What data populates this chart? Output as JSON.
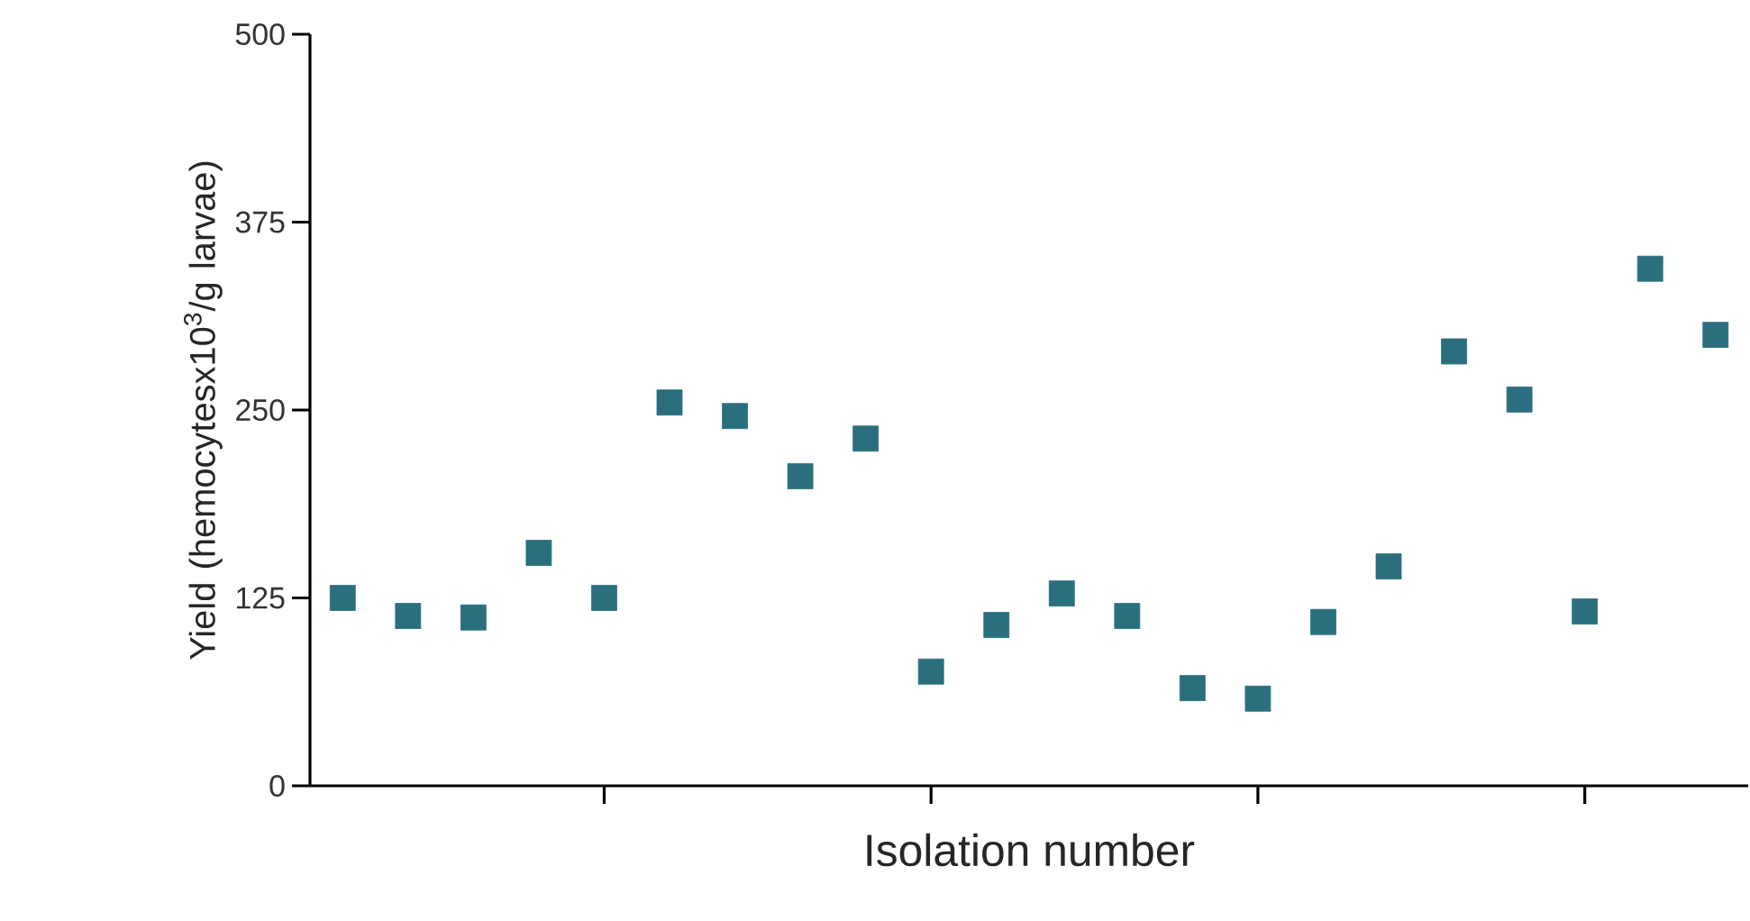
{
  "chart_data": {
    "type": "scatter",
    "xlabel": "Isolation number",
    "ylabel": "Yield (hemocytesx10$^{3}$/g larvae)",
    "categories": [
      null,
      null,
      null,
      null,
      null,
      null,
      null,
      null,
      null,
      null,
      null,
      null,
      null,
      null,
      null,
      null,
      null,
      null,
      null,
      null,
      null,
      null
    ],
    "series": [
      {
        "color": "#2b6f7f",
        "values": [
          125,
          113,
          112,
          155,
          125,
          255,
          246,
          206,
          231,
          76,
          107,
          128,
          113,
          65,
          58,
          109,
          146,
          289,
          257,
          116,
          344,
          300
        ]
      }
    ],
    "ylim": [
      0,
      500
    ],
    "yticks": [
      0,
      125,
      250,
      375,
      500
    ],
    "tick_labels": "y",
    "marker": "square"
  }
}
